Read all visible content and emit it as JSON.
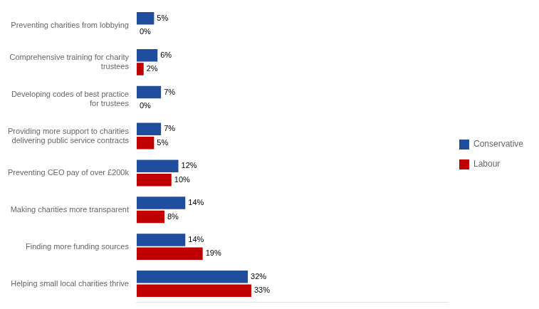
{
  "chart_data": {
    "type": "bar",
    "orientation": "horizontal",
    "categories": [
      "Preventing charities from lobbying",
      "Comprehensive training for charity\ntrustees",
      "Developing codes of best practice\nfor trustees",
      "Providing more support to charities\ndelivering public service contracts",
      "Preventing CEO pay of over £200k",
      "Making charities more transparent",
      "Finding more funding sources",
      "Helping small local charities thrive"
    ],
    "series": [
      {
        "name": "Conservative",
        "color": "#1F4E9F",
        "values": [
          5,
          6,
          7,
          7,
          12,
          14,
          14,
          32
        ],
        "value_labels": [
          "5%",
          "6%",
          "7%",
          "7%",
          "12%",
          "14%",
          "14%",
          "32%"
        ]
      },
      {
        "name": "Labour",
        "color": "#C00000",
        "values": [
          0,
          2,
          0,
          5,
          10,
          8,
          19,
          33
        ],
        "value_labels": [
          "0%",
          "2%",
          "0%",
          "5%",
          "10%",
          "8%",
          "19%",
          "33%"
        ]
      }
    ],
    "xlim": [
      0,
      90
    ],
    "data_labels": true,
    "tick_labels": "y",
    "grid": false,
    "legend": "right"
  }
}
